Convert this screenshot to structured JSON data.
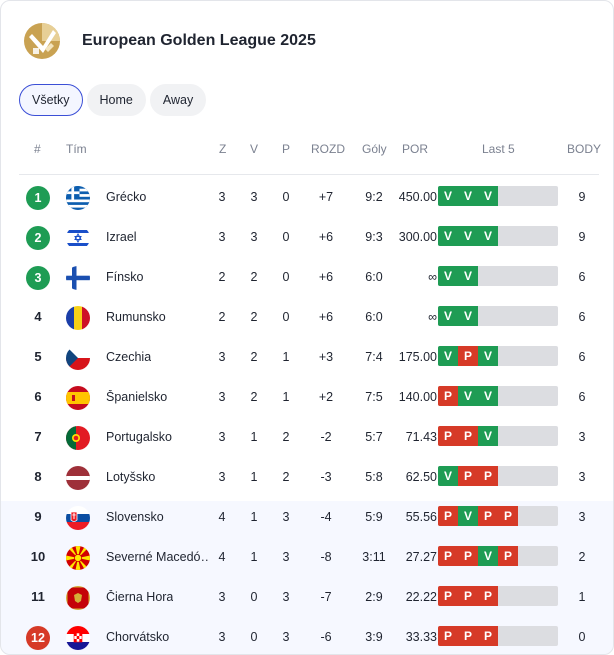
{
  "header": {
    "title": "European Golden League 2025",
    "logo_icon": "golden-league-logo"
  },
  "tabs": [
    {
      "label": "Všetky",
      "active": true
    },
    {
      "label": "Home",
      "active": false
    },
    {
      "label": "Away",
      "active": false
    }
  ],
  "columns": {
    "rank": "#",
    "team": "Tím",
    "played": "Z",
    "won": "V",
    "lost": "P",
    "diff": "ROZD",
    "goals": "Góly",
    "ratio": "POR",
    "last5": "Last 5",
    "points": "BODY"
  },
  "colors": {
    "qualify": "#1e9c54",
    "relegate": "#d63a27",
    "win": "#1e9c54",
    "loss": "#d63a27",
    "accent": "#3b4fd6"
  },
  "rows": [
    {
      "rank": "1",
      "zone": "qualify",
      "flag": "greece",
      "team": "Grécko",
      "played": "3",
      "won": "3",
      "lost": "0",
      "diff": "+7",
      "goals": "9:2",
      "ratio": "450.00",
      "last5": [
        "V",
        "V",
        "V"
      ],
      "points": "9"
    },
    {
      "rank": "2",
      "zone": "qualify",
      "flag": "israel",
      "team": "Izrael",
      "played": "3",
      "won": "3",
      "lost": "0",
      "diff": "+6",
      "goals": "9:3",
      "ratio": "300.00",
      "last5": [
        "V",
        "V",
        "V"
      ],
      "points": "9"
    },
    {
      "rank": "3",
      "zone": "qualify",
      "flag": "finland",
      "team": "Fínsko",
      "played": "2",
      "won": "2",
      "lost": "0",
      "diff": "+6",
      "goals": "6:0",
      "ratio": "∞",
      "last5": [
        "V",
        "V"
      ],
      "points": "6"
    },
    {
      "rank": "4",
      "zone": "",
      "flag": "romania",
      "team": "Rumunsko",
      "played": "2",
      "won": "2",
      "lost": "0",
      "diff": "+6",
      "goals": "6:0",
      "ratio": "∞",
      "last5": [
        "V",
        "V"
      ],
      "points": "6"
    },
    {
      "rank": "5",
      "zone": "",
      "flag": "czechia",
      "team": "Czechia",
      "played": "3",
      "won": "2",
      "lost": "1",
      "diff": "+3",
      "goals": "7:4",
      "ratio": "175.00",
      "last5": [
        "V",
        "P",
        "V"
      ],
      "points": "6"
    },
    {
      "rank": "6",
      "zone": "",
      "flag": "spain",
      "team": "Španielsko",
      "played": "3",
      "won": "2",
      "lost": "1",
      "diff": "+2",
      "goals": "7:5",
      "ratio": "140.00",
      "last5": [
        "P",
        "V",
        "V"
      ],
      "points": "6"
    },
    {
      "rank": "7",
      "zone": "",
      "flag": "portugal",
      "team": "Portugalsko",
      "played": "3",
      "won": "1",
      "lost": "2",
      "diff": "-2",
      "goals": "5:7",
      "ratio": "71.43",
      "last5": [
        "P",
        "P",
        "V"
      ],
      "points": "3"
    },
    {
      "rank": "8",
      "zone": "",
      "flag": "latvia",
      "team": "Lotyšsko",
      "played": "3",
      "won": "1",
      "lost": "2",
      "diff": "-3",
      "goals": "5:8",
      "ratio": "62.50",
      "last5": [
        "V",
        "P",
        "P"
      ],
      "points": "3"
    },
    {
      "rank": "9",
      "zone": "",
      "flag": "slovakia",
      "team": "Slovensko",
      "played": "4",
      "won": "1",
      "lost": "3",
      "diff": "-4",
      "goals": "5:9",
      "ratio": "55.56",
      "last5": [
        "P",
        "V",
        "P",
        "P"
      ],
      "points": "3"
    },
    {
      "rank": "10",
      "zone": "",
      "flag": "north-macedonia",
      "team": "Severné Macedó…",
      "played": "4",
      "won": "1",
      "lost": "3",
      "diff": "-8",
      "goals": "3:11",
      "ratio": "27.27",
      "last5": [
        "P",
        "P",
        "V",
        "P"
      ],
      "points": "2"
    },
    {
      "rank": "11",
      "zone": "",
      "flag": "montenegro",
      "team": "Čierna Hora",
      "played": "3",
      "won": "0",
      "lost": "3",
      "diff": "-7",
      "goals": "2:9",
      "ratio": "22.22",
      "last5": [
        "P",
        "P",
        "P"
      ],
      "points": "1"
    },
    {
      "rank": "12",
      "zone": "relegate",
      "flag": "croatia",
      "team": "Chorvátsko",
      "played": "3",
      "won": "0",
      "lost": "3",
      "diff": "-6",
      "goals": "3:9",
      "ratio": "33.33",
      "last5": [
        "P",
        "P",
        "P"
      ],
      "points": "0"
    }
  ]
}
